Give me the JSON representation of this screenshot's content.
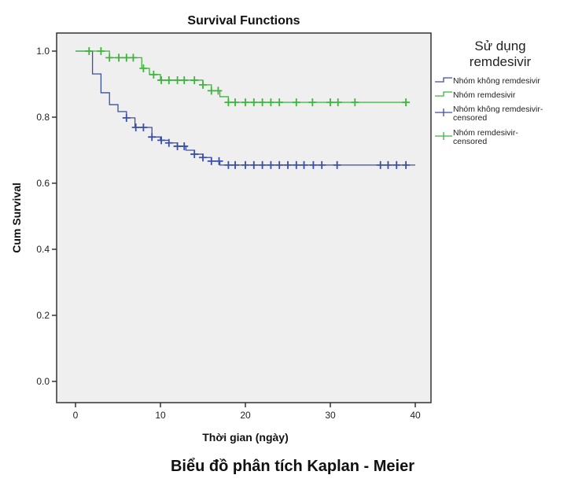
{
  "chart_data": {
    "type": "line",
    "title": "Survival Functions",
    "xlabel": "Thời gian (ngày)",
    "ylabel": "Cum Survival",
    "caption": "Biểu đồ phân tích Kaplan - Meier",
    "xlim": [
      -2,
      42
    ],
    "ylim": [
      -0.065,
      1.065
    ],
    "xticks": [
      0,
      10,
      20,
      30,
      40
    ],
    "xtick_labels": [
      "0",
      "10",
      "20",
      "30",
      "40"
    ],
    "yticks": [
      0,
      0.2,
      0.4,
      0.6,
      0.8,
      1.0
    ],
    "ytick_labels": [
      "0.0",
      "0.2",
      "0.4",
      "0.6",
      "0.8",
      "1.0"
    ],
    "grid": false,
    "legend": {
      "title": "Sử dụng remdesivir",
      "title_lines": [
        "Sử dụng",
        "remdesivir"
      ],
      "placement": "right",
      "entries": [
        {
          "label": "Nhóm không remdesivir",
          "lines": [
            "Nhóm không remdesivir"
          ],
          "type": "step",
          "color": "#3a4fa8"
        },
        {
          "label": "Nhóm remdesivir",
          "lines": [
            "Nhóm remdesivir"
          ],
          "type": "step",
          "color": "#3cb53c"
        },
        {
          "label": "Nhóm không remdesivir-censored",
          "lines": [
            "Nhóm không remdesivir-",
            "censored"
          ],
          "type": "censor",
          "color": "#3a4fa8"
        },
        {
          "label": "Nhóm remdesivir-censored",
          "lines": [
            "Nhóm remdesivir-",
            "censored"
          ],
          "type": "censor",
          "color": "#3cb53c"
        }
      ]
    },
    "series": [
      {
        "name": "Nhóm không remdesivir",
        "color": "#3a4fa8",
        "steps": [
          [
            0,
            1.0
          ],
          [
            2,
            0.931
          ],
          [
            3,
            0.874
          ],
          [
            4,
            0.838
          ],
          [
            5,
            0.817
          ],
          [
            6,
            0.798
          ],
          [
            7,
            0.769
          ],
          [
            9,
            0.74
          ],
          [
            10,
            0.73
          ],
          [
            11,
            0.722
          ],
          [
            12,
            0.712
          ],
          [
            13,
            0.7
          ],
          [
            14,
            0.688
          ],
          [
            15,
            0.678
          ],
          [
            16,
            0.667
          ],
          [
            17,
            0.655
          ]
        ],
        "end": 40,
        "censored": [
          6,
          7.1,
          8,
          9,
          10.1,
          11,
          12,
          12.8,
          14,
          15,
          16,
          16.9,
          18,
          18.8,
          20,
          21,
          22,
          23,
          24,
          25,
          26,
          26.9,
          28,
          29,
          30.8,
          35.9,
          36.8,
          37.8,
          38.9
        ]
      },
      {
        "name": "Nhóm remdesivir",
        "color": "#3cb53c",
        "steps": [
          [
            0,
            1.0
          ],
          [
            4,
            0.98
          ],
          [
            7.8,
            0.948
          ],
          [
            8.7,
            0.929
          ],
          [
            10,
            0.912
          ],
          [
            15,
            0.898
          ],
          [
            16,
            0.88
          ],
          [
            17,
            0.862
          ],
          [
            18,
            0.845
          ]
        ],
        "end": 39,
        "censored": [
          1.6,
          3,
          4,
          5.1,
          6,
          6.8,
          8,
          9.2,
          10.1,
          11,
          12,
          12.8,
          14,
          15,
          16,
          16.8,
          18,
          18.8,
          20,
          21,
          22,
          23,
          24,
          26,
          27.9,
          30,
          30.9,
          32.9,
          38.9
        ]
      }
    ]
  }
}
